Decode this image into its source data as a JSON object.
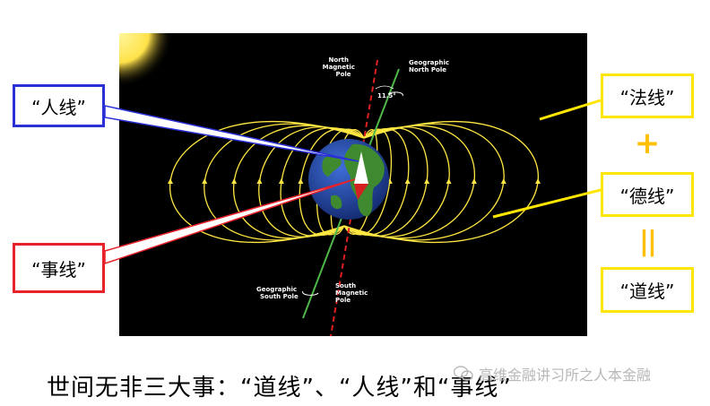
{
  "diagram": {
    "labels": {
      "north_magnetic_pole": [
        "North",
        "Magnetic",
        "Pole"
      ],
      "geographic_north_pole": [
        "Geographic",
        "North Pole"
      ],
      "angle": "11.5°",
      "geographic_south_pole": [
        "Geographic",
        "South Pole"
      ],
      "south_magnetic_pole": [
        "South",
        "Magnetic",
        "Pole"
      ]
    }
  },
  "callouts": {
    "ren": "“人线”",
    "shi": "“事线”",
    "fa": "“法线”",
    "plus": "+",
    "de": "“德线”",
    "equals": "||",
    "dao": "“道线”"
  },
  "caption": "世间无非三大事：“道线”、“人线”和“事线”",
  "watermark": "高维金融讲习所之人本金融",
  "colors": {
    "field_line": "#ffe642",
    "blue_box": "#2a2fd6",
    "red_box": "#e8222a",
    "yellow_box": "#ffe600",
    "symbol": "#ffc000"
  }
}
